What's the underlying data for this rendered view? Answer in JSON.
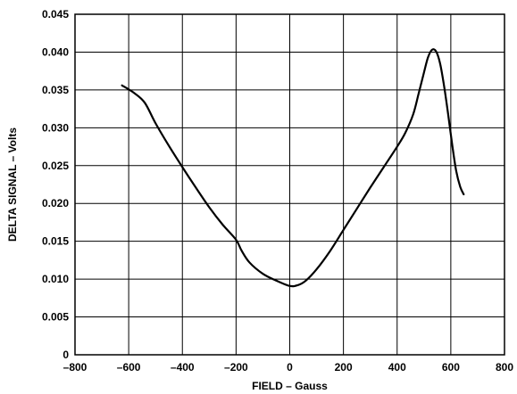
{
  "chart_data": {
    "type": "line",
    "title": "",
    "xlabel": "FIELD – Gauss",
    "ylabel": "DELTA SIGNAL – Volts",
    "xlim": [
      -800,
      800
    ],
    "ylim": [
      0,
      0.045
    ],
    "xticks": [
      -800,
      -600,
      -400,
      -200,
      0,
      200,
      400,
      600,
      800
    ],
    "xtick_labels": [
      "–800",
      "–600",
      "–400",
      "–200",
      "0",
      "200",
      "400",
      "600",
      "800"
    ],
    "yticks": [
      0,
      0.005,
      0.01,
      0.015,
      0.02,
      0.025,
      0.03,
      0.035,
      0.04,
      0.045
    ],
    "ytick_labels": [
      "0",
      "0.005",
      "0.010",
      "0.015",
      "0.020",
      "0.025",
      "0.030",
      "0.035",
      "0.040",
      "0.045"
    ],
    "grid": true,
    "series": [
      {
        "color": "#000000",
        "x": [
          -625,
          -580,
          -540,
          -500,
          -450,
          -400,
          -350,
          -300,
          -250,
          -200,
          -180,
          -150,
          -100,
          -50,
          0,
          30,
          60,
          100,
          150,
          200,
          250,
          300,
          350,
          400,
          430,
          460,
          480,
          500,
          515,
          530,
          545,
          560,
          575,
          590,
          605,
          620,
          635,
          648
        ],
        "y": [
          0.0356,
          0.0346,
          0.0333,
          0.0306,
          0.0276,
          0.0248,
          0.0221,
          0.0195,
          0.0172,
          0.0152,
          0.0138,
          0.0122,
          0.0107,
          0.0098,
          0.0091,
          0.0092,
          0.0098,
          0.0113,
          0.0137,
          0.0165,
          0.0193,
          0.0221,
          0.0248,
          0.0275,
          0.0293,
          0.0318,
          0.0345,
          0.0373,
          0.0393,
          0.0403,
          0.0401,
          0.0385,
          0.0355,
          0.0318,
          0.0278,
          0.0243,
          0.0222,
          0.0212
        ]
      }
    ]
  }
}
